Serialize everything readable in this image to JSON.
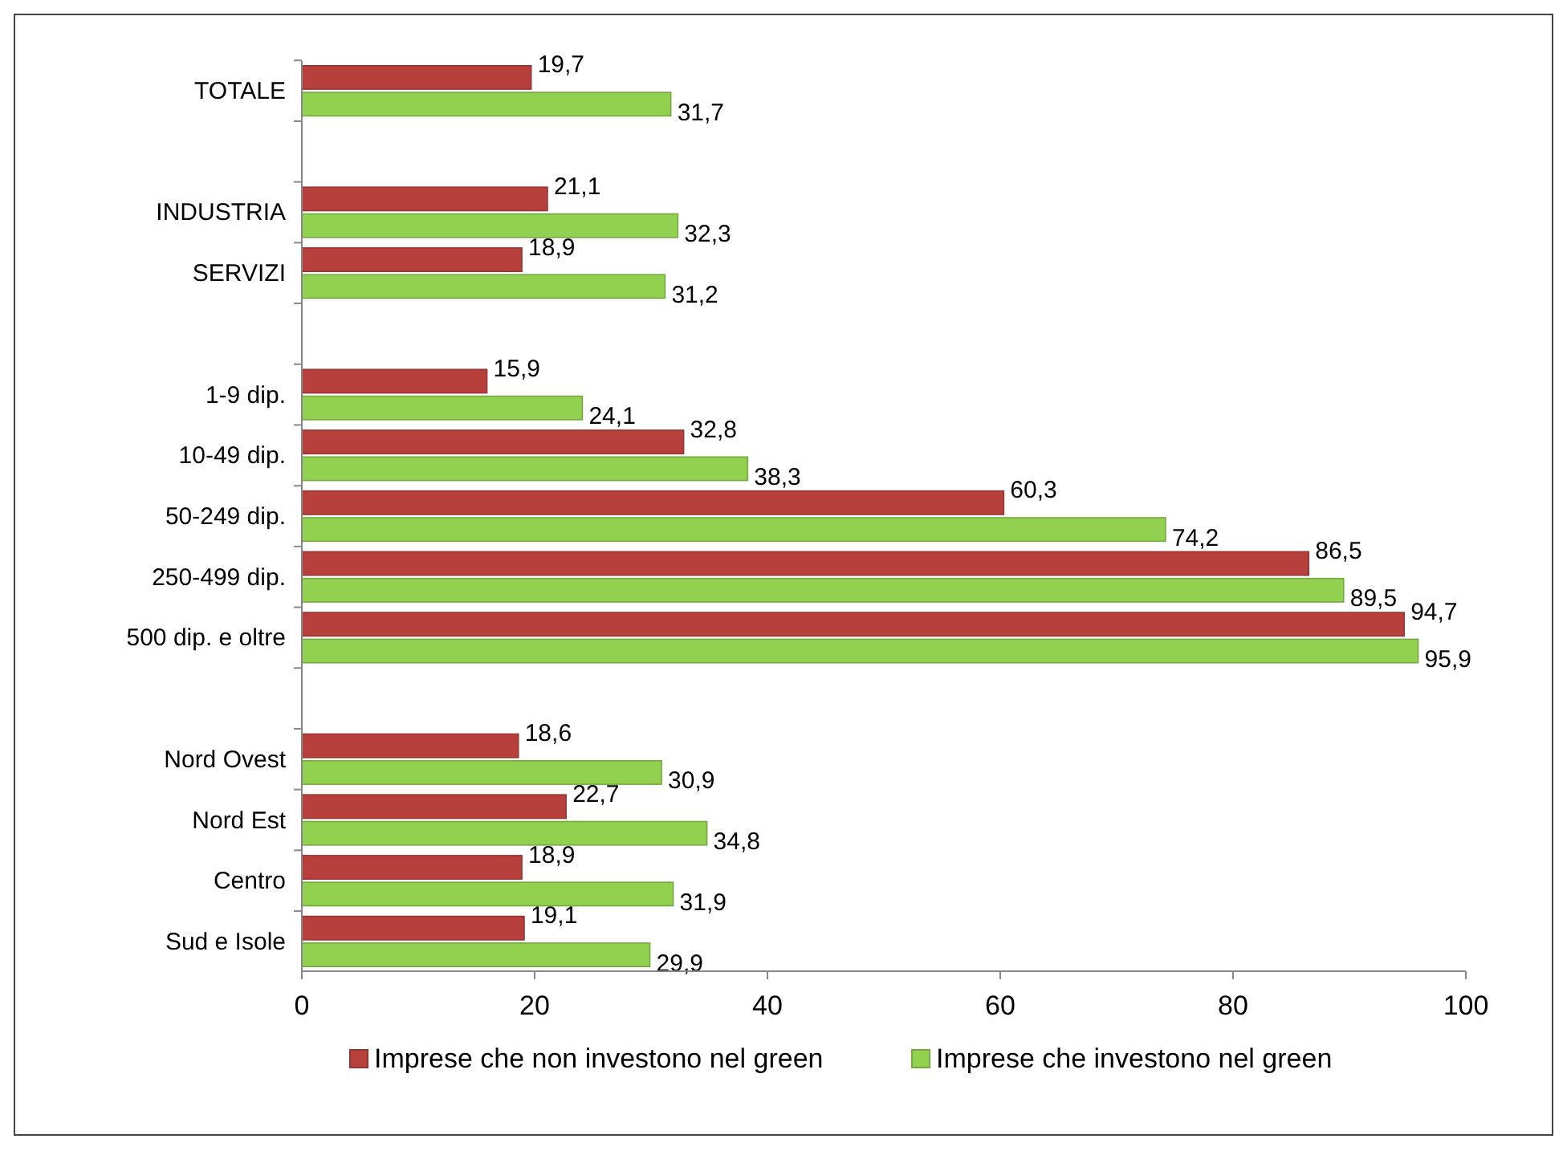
{
  "chart_data": {
    "type": "bar",
    "orientation": "horizontal",
    "categories": [
      "TOTALE",
      null,
      "INDUSTRIA",
      "SERVIZI",
      null,
      "1-9 dip.",
      "10-49 dip.",
      "50-249 dip.",
      "250-499 dip.",
      "500 dip. e oltre",
      null,
      "Nord Ovest",
      "Nord Est",
      "Centro",
      "Sud e Isole"
    ],
    "series": [
      {
        "name": "Imprese che non investono nel green",
        "color": "#b8403c",
        "values": [
          19.7,
          null,
          21.1,
          18.9,
          null,
          15.9,
          32.8,
          60.3,
          86.5,
          94.7,
          null,
          18.6,
          22.7,
          18.9,
          19.1
        ],
        "value_labels": [
          "19,7",
          null,
          "21,1",
          "18,9",
          null,
          "15,9",
          "32,8",
          "60,3",
          "86,5",
          "94,7",
          null,
          "18,6",
          "22,7",
          "18,9",
          "19,1"
        ]
      },
      {
        "name": "Imprese che investono nel green",
        "color": "#92d050",
        "values": [
          31.7,
          null,
          32.3,
          31.2,
          null,
          24.1,
          38.3,
          74.2,
          89.5,
          95.9,
          null,
          30.9,
          34.8,
          31.9,
          29.9
        ],
        "value_labels": [
          "31,7",
          null,
          "32,3",
          "31,2",
          null,
          "24,1",
          "38,3",
          "74,2",
          "89,5",
          "95,9",
          null,
          "30,9",
          "34,8",
          "31,9",
          "29,9"
        ]
      }
    ],
    "xlim": [
      0,
      100
    ],
    "xticks": [
      0,
      20,
      40,
      60,
      80,
      100
    ],
    "grid": false,
    "legend": "bottom"
  }
}
